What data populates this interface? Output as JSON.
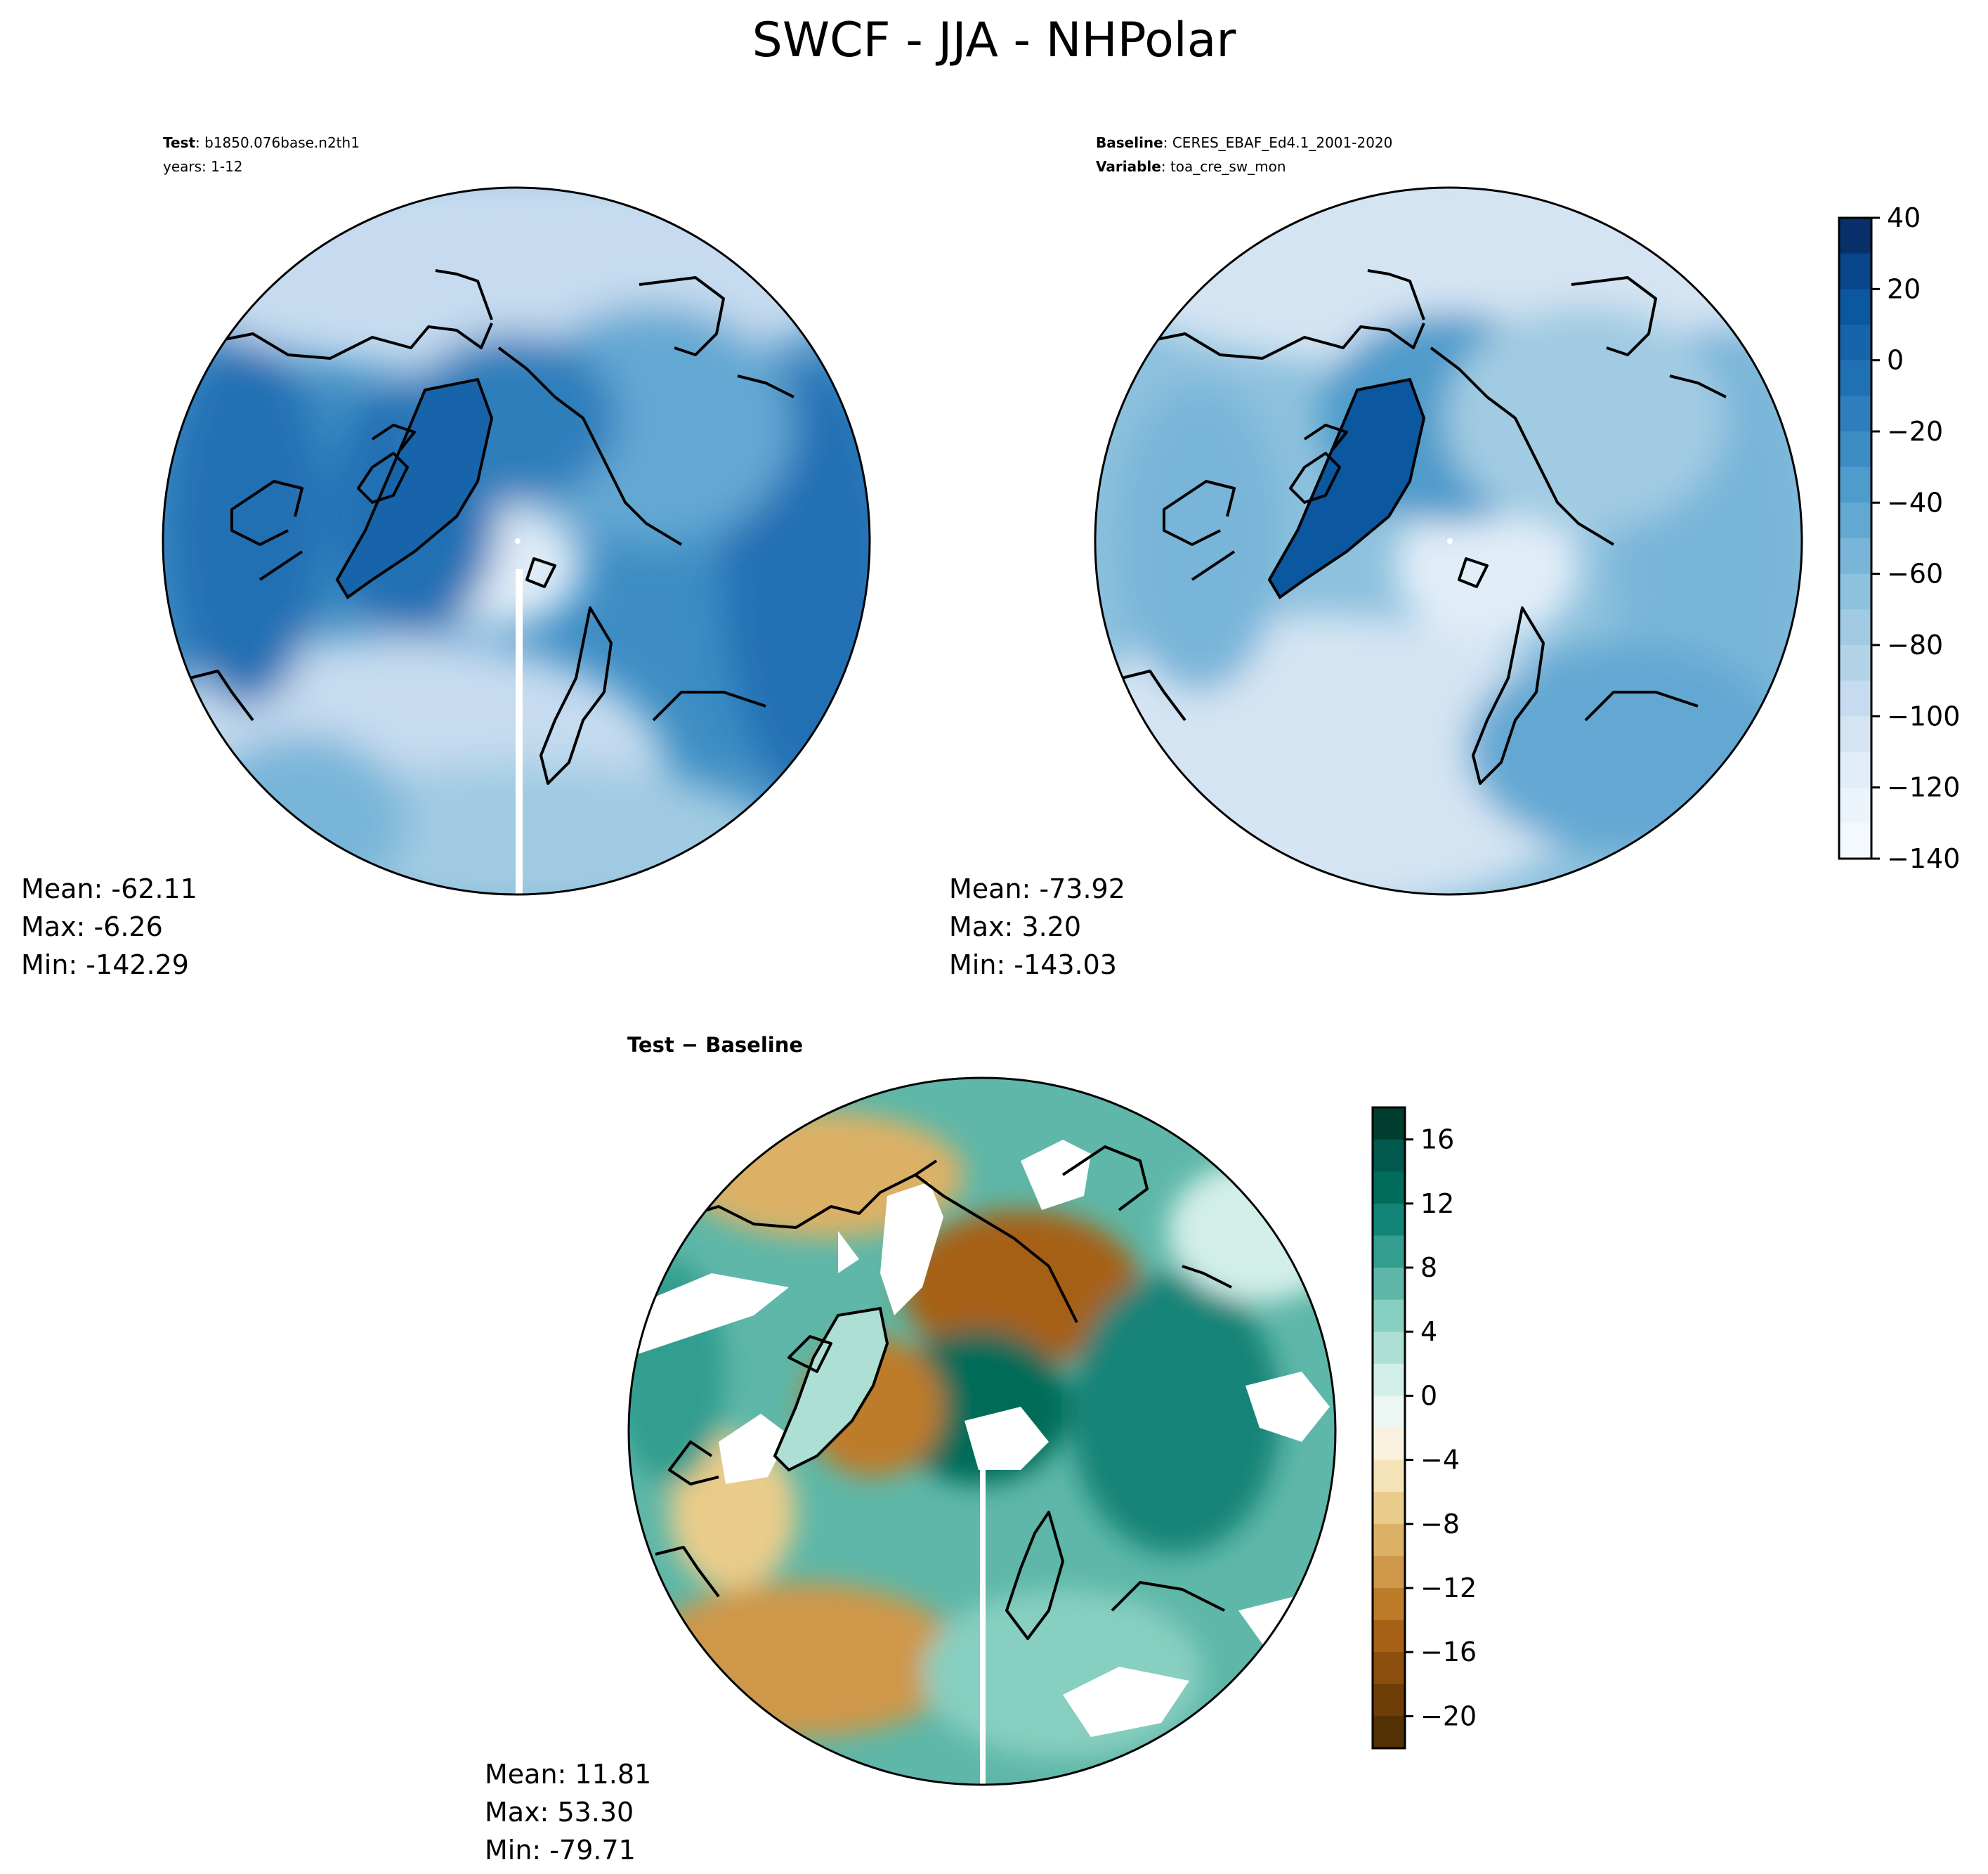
{
  "title": "SWCF - JJA - NHPolar",
  "panels": {
    "test": {
      "label_key": "Test",
      "label_value": "b1850.076base.n2th1",
      "years": "years: 1-12",
      "stats": {
        "mean": "Mean: -62.11",
        "max": "Max: -6.26",
        "min": "Min: -142.29"
      }
    },
    "baseline": {
      "label_key": "Baseline",
      "label_value": "CERES_EBAF_Ed4.1_2001-2020",
      "var_key": "Variable",
      "var_value": "toa_cre_sw_mon",
      "stats": {
        "mean": "Mean: -73.92",
        "max": "Max:  3.20",
        "min": "Min: -143.03"
      }
    },
    "difference": {
      "title": "Test − Baseline",
      "stats": {
        "mean": "Mean: 11.81",
        "max": "Max: 53.30",
        "min": "Min: -79.71"
      }
    }
  },
  "colorbars": {
    "main": {
      "ticks": [
        "40",
        "20",
        "0",
        "−20",
        "−40",
        "−60",
        "−80",
        "−100",
        "−120",
        "−140"
      ],
      "colors": [
        "#08306b",
        "#08458a",
        "#0b57a0",
        "#1764ab",
        "#2070b4",
        "#2e7ebc",
        "#3d8dc4",
        "#4f9bcb",
        "#63a8d3",
        "#79b5d9",
        "#8dc1dd",
        "#a0cbe2",
        "#b3d3e8",
        "#c6dbef",
        "#d4e4f3",
        "#e1edf8",
        "#ebf3fb",
        "#f4f9fe"
      ]
    },
    "diff": {
      "ticks": [
        "16",
        "12",
        "8",
        "4",
        "0",
        "−4",
        "−8",
        "−12",
        "−16",
        "−20"
      ],
      "colors": [
        "#003d2e",
        "#00594c",
        "#016c59",
        "#128478",
        "#339e90",
        "#5eb7a8",
        "#87cfc0",
        "#aedfd5",
        "#d2eee8",
        "#ecf6f3",
        "#f9f1de",
        "#f5e3b8",
        "#e9cc8a",
        "#dcb166",
        "#cf9749",
        "#bd7c2a",
        "#a66116",
        "#8c4e0c",
        "#6e3d08",
        "#543005"
      ]
    }
  },
  "stats_header": ""
}
